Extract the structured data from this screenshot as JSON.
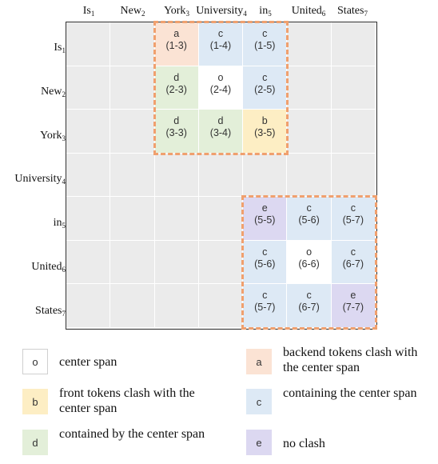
{
  "tokens": [
    {
      "word": "Is",
      "idx": "1"
    },
    {
      "word": "New",
      "idx": "2"
    },
    {
      "word": "York",
      "idx": "3"
    },
    {
      "word": "University",
      "idx": "4"
    },
    {
      "word": "in",
      "idx": "5"
    },
    {
      "word": "United",
      "idx": "6"
    },
    {
      "word": "States",
      "idx": "7"
    }
  ],
  "colors": {
    "o": "#ffffff",
    "a": "#fbe3d4",
    "b": "#fdeec4",
    "c": "#dde9f5",
    "d": "#e3efd9",
    "e": "#dcd8f1",
    "empty": "#ebebeb",
    "highlight": "#f0a06e"
  },
  "cells": [
    {
      "row": 1,
      "col": 3,
      "label": "a",
      "span": "(1-3)"
    },
    {
      "row": 1,
      "col": 4,
      "label": "c",
      "span": "(1-4)"
    },
    {
      "row": 1,
      "col": 5,
      "label": "c",
      "span": "(1-5)"
    },
    {
      "row": 2,
      "col": 3,
      "label": "d",
      "span": "(2-3)"
    },
    {
      "row": 2,
      "col": 4,
      "label": "o",
      "span": "(2-4)"
    },
    {
      "row": 2,
      "col": 5,
      "label": "c",
      "span": "(2-5)"
    },
    {
      "row": 3,
      "col": 3,
      "label": "d",
      "span": "(3-3)"
    },
    {
      "row": 3,
      "col": 4,
      "label": "d",
      "span": "(3-4)"
    },
    {
      "row": 3,
      "col": 5,
      "label": "b",
      "span": "(3-5)"
    },
    {
      "row": 5,
      "col": 5,
      "label": "e",
      "span": "(5-5)"
    },
    {
      "row": 5,
      "col": 6,
      "label": "c",
      "span": "(5-6)"
    },
    {
      "row": 5,
      "col": 7,
      "label": "c",
      "span": "(5-7)"
    },
    {
      "row": 6,
      "col": 5,
      "label": "c",
      "span": "(5-6)"
    },
    {
      "row": 6,
      "col": 6,
      "label": "o",
      "span": "(6-6)"
    },
    {
      "row": 6,
      "col": 7,
      "label": "c",
      "span": "(6-7)"
    },
    {
      "row": 7,
      "col": 5,
      "label": "c",
      "span": "(5-7)"
    },
    {
      "row": 7,
      "col": 6,
      "label": "c",
      "span": "(6-7)"
    },
    {
      "row": 7,
      "col": 7,
      "label": "e",
      "span": "(7-7)"
    }
  ],
  "highlights": [
    {
      "row_start": 1,
      "row_end": 3,
      "col_start": 3,
      "col_end": 5
    },
    {
      "row_start": 5,
      "row_end": 7,
      "col_start": 5,
      "col_end": 7
    }
  ],
  "legend": [
    {
      "key": "o",
      "text": "center span"
    },
    {
      "key": "a",
      "text": "backend tokens clash with the center span"
    },
    {
      "key": "b",
      "text": "front tokens clash with the center span"
    },
    {
      "key": "c",
      "text": "containing the center span"
    },
    {
      "key": "d",
      "text": "contained by the center span"
    },
    {
      "key": "e",
      "text": "no clash"
    }
  ]
}
